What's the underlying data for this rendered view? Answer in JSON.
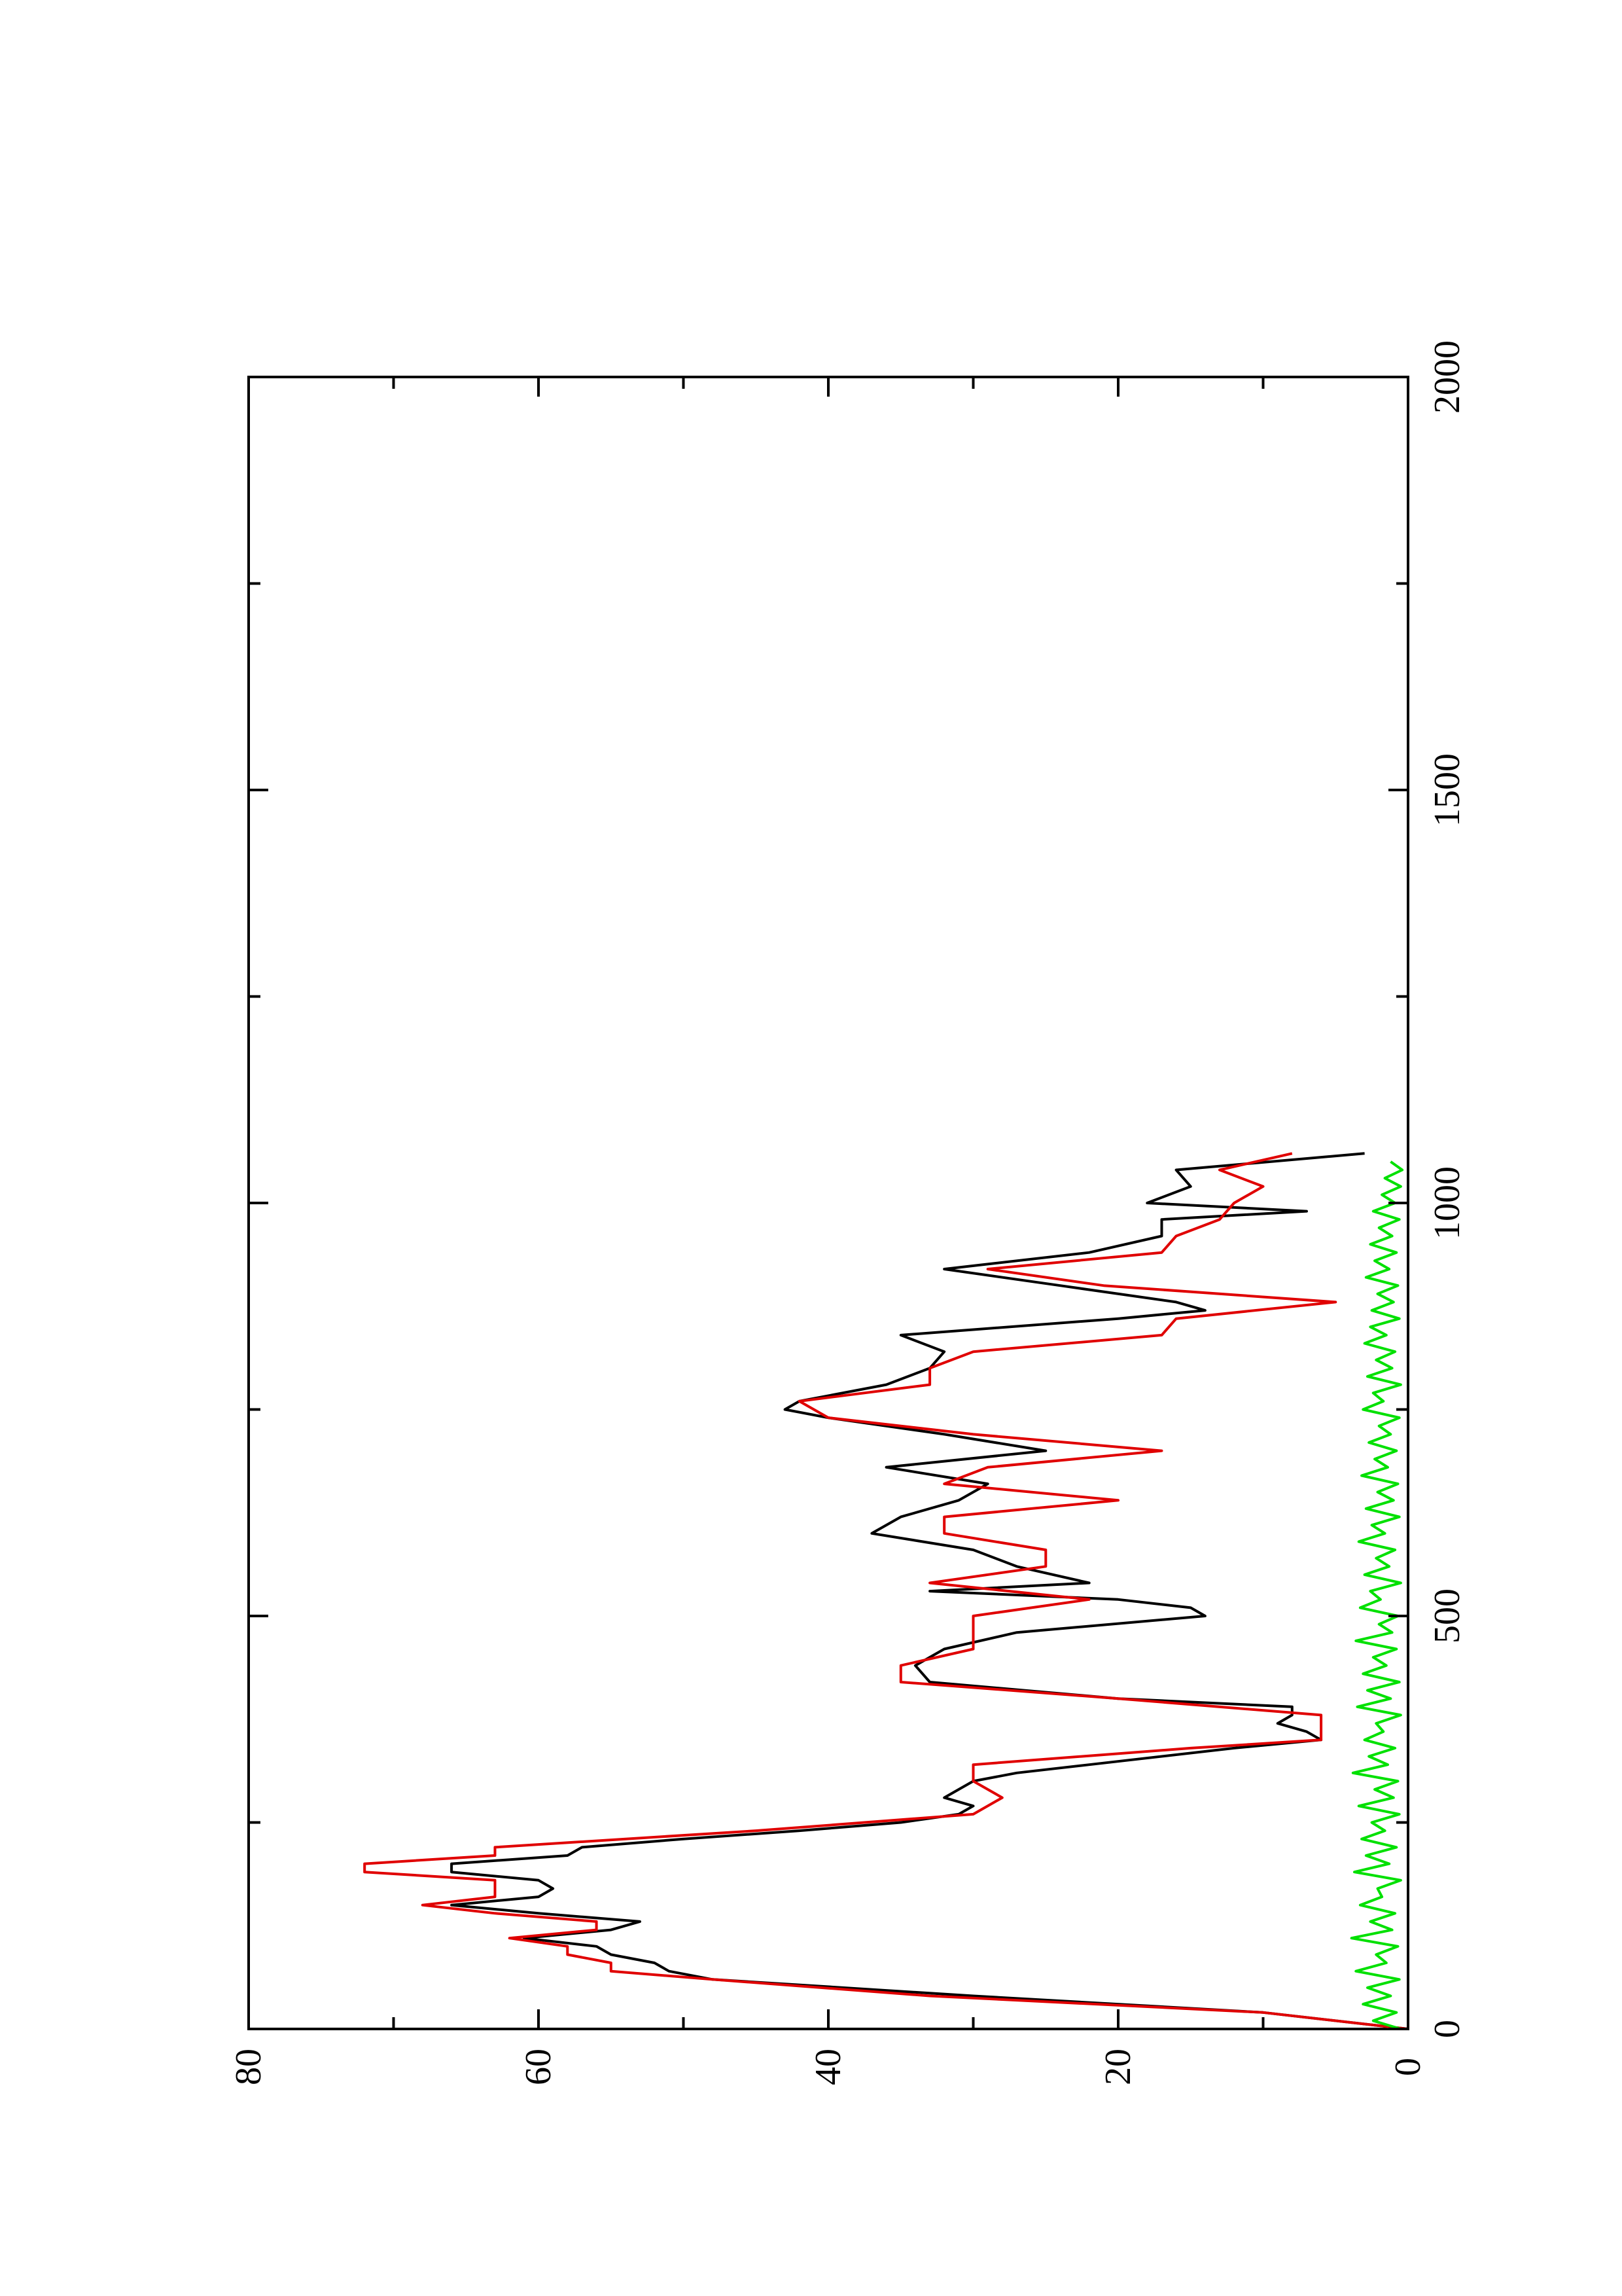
{
  "chart_data": {
    "type": "line",
    "orientation": "rotated-90-ccw",
    "title": "",
    "xlabel": "",
    "ylabel": "",
    "xlim": [
      0,
      2000
    ],
    "ylim": [
      0,
      80
    ],
    "x_ticks": [
      0,
      500,
      1000,
      1500,
      2000
    ],
    "y_ticks": [
      0,
      20,
      40,
      60,
      80
    ],
    "x_tick_labels": [
      "0",
      "500",
      "1000",
      "1500",
      "2000"
    ],
    "y_tick_labels": [
      "0",
      "20",
      "40",
      "60",
      "80"
    ],
    "grid": false,
    "legend": "none",
    "colors": {
      "series_black": "#000000",
      "series_red": "#e00000",
      "series_green": "#00e000",
      "axes": "#000000"
    },
    "series": [
      {
        "color": "#000000",
        "x": [
          0,
          20,
          40,
          60,
          70,
          80,
          90,
          100,
          110,
          120,
          130,
          140,
          150,
          160,
          170,
          180,
          190,
          200,
          210,
          220,
          230,
          240,
          250,
          260,
          270,
          280,
          290,
          300,
          310,
          320,
          340,
          350,
          360,
          370,
          380,
          390,
          400,
          420,
          440,
          460,
          480,
          500,
          510,
          520,
          530,
          540,
          560,
          580,
          600,
          620,
          640,
          660,
          680,
          700,
          720,
          740,
          750,
          760,
          780,
          800,
          820,
          840,
          860,
          870,
          880,
          900,
          920,
          940,
          960,
          980,
          990,
          1000,
          1020,
          1040,
          1060
        ],
        "y": [
          0,
          10,
          30,
          48,
          51,
          52,
          55,
          56,
          61,
          55,
          53,
          60,
          66,
          60,
          59,
          60,
          66,
          66,
          58,
          57,
          50,
          42,
          35,
          31,
          30,
          32,
          31,
          30,
          27,
          22,
          12,
          6,
          7,
          9,
          8,
          8,
          20,
          33,
          34,
          32,
          27,
          14,
          15,
          20,
          33,
          22,
          27,
          30,
          37,
          35,
          31,
          29,
          36,
          25,
          32,
          40,
          43,
          42,
          36,
          33,
          32,
          35,
          20,
          14,
          16,
          24,
          32,
          22,
          17,
          17,
          7,
          18,
          15,
          16,
          3
        ]
      },
      {
        "color": "#e00000",
        "x": [
          0,
          20,
          40,
          60,
          70,
          80,
          90,
          100,
          110,
          120,
          130,
          140,
          150,
          160,
          170,
          180,
          190,
          200,
          210,
          220,
          240,
          260,
          280,
          300,
          320,
          340,
          350,
          360,
          380,
          400,
          420,
          440,
          460,
          480,
          500,
          520,
          540,
          560,
          580,
          600,
          620,
          640,
          660,
          680,
          700,
          720,
          740,
          760,
          780,
          800,
          820,
          840,
          860,
          880,
          900,
          920,
          940,
          960,
          980,
          1000,
          1020,
          1040,
          1060
        ],
        "y": [
          0,
          10,
          33,
          48,
          55,
          55,
          58,
          58,
          62,
          56,
          56,
          63,
          68,
          63,
          63,
          63,
          72,
          72,
          63,
          63,
          45,
          30,
          28,
          30,
          30,
          15,
          6,
          6,
          6,
          20,
          35,
          35,
          30,
          30,
          30,
          22,
          33,
          25,
          25,
          32,
          32,
          20,
          32,
          29,
          17,
          30,
          40,
          42,
          33,
          33,
          30,
          17,
          16,
          5,
          21,
          29,
          17,
          16,
          13,
          12,
          10,
          13,
          8
        ]
      },
      {
        "color": "#00e000",
        "x": [
          0,
          10,
          20,
          30,
          40,
          50,
          60,
          70,
          80,
          90,
          100,
          110,
          120,
          130,
          140,
          150,
          160,
          170,
          180,
          190,
          200,
          210,
          220,
          230,
          240,
          250,
          260,
          270,
          280,
          290,
          300,
          310,
          320,
          330,
          340,
          350,
          360,
          370,
          380,
          390,
          400,
          410,
          420,
          430,
          440,
          450,
          460,
          470,
          480,
          490,
          500,
          510,
          520,
          530,
          540,
          550,
          560,
          570,
          580,
          590,
          600,
          610,
          620,
          630,
          640,
          650,
          660,
          670,
          680,
          690,
          700,
          710,
          720,
          730,
          740,
          750,
          760,
          770,
          780,
          790,
          800,
          810,
          820,
          830,
          840,
          850,
          860,
          870,
          880,
          890,
          900,
          910,
          920,
          930,
          940,
          950,
          960,
          970,
          980,
          990,
          1000,
          1010,
          1020,
          1030,
          1040,
          1050
        ],
        "y": [
          0.5,
          2.4,
          0.8,
          3.1,
          1.2,
          2.8,
          0.6,
          3.6,
          1.5,
          2.2,
          0.7,
          3.9,
          1.1,
          2.6,
          0.9,
          3.3,
          1.8,
          2.1,
          0.5,
          3.7,
          1.3,
          2.9,
          0.8,
          3.2,
          1.6,
          2.5,
          0.6,
          3.4,
          1.0,
          2.3,
          0.7,
          3.8,
          1.4,
          2.7,
          0.9,
          3.0,
          1.7,
          2.2,
          0.5,
          3.5,
          1.2,
          2.8,
          0.6,
          3.1,
          1.5,
          2.4,
          0.8,
          3.6,
          1.1,
          2.0,
          0.7,
          3.3,
          1.9,
          2.6,
          0.5,
          3.0,
          1.3,
          2.2,
          0.9,
          3.4,
          1.6,
          2.5,
          0.6,
          2.9,
          1.0,
          2.1,
          0.7,
          3.2,
          1.4,
          2.3,
          0.8,
          2.7,
          1.2,
          2.0,
          0.6,
          3.1,
          1.7,
          2.4,
          0.5,
          2.8,
          1.1,
          2.2,
          0.9,
          3.0,
          1.5,
          2.6,
          0.6,
          2.5,
          1.0,
          2.1,
          0.7,
          2.9,
          1.3,
          2.3,
          0.8,
          2.6,
          1.1,
          2.0,
          0.6,
          2.4,
          0.9,
          1.8,
          0.5,
          1.6,
          0.4,
          1.2
        ]
      }
    ]
  }
}
